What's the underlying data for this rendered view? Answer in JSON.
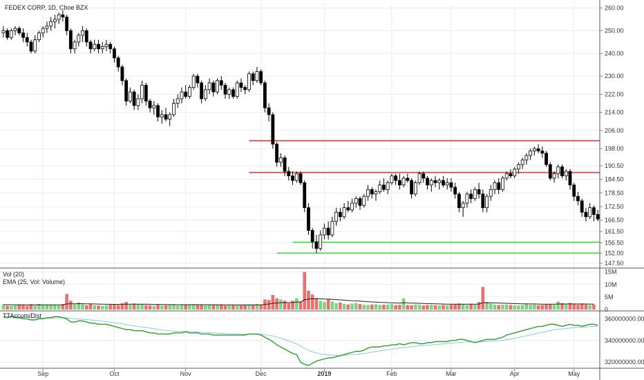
{
  "chart_data": {
    "type": "candlestick",
    "title": "FEDEX CORP, 1D, Cboe BZX",
    "colors": {
      "up": "#ffffff",
      "down": "#000000",
      "wick": "#000000",
      "resistance": "#e03a3a",
      "support": "#3ee03e",
      "vol_up": "#7fd37f",
      "vol_down": "#ec6f6f",
      "ema": "#222222",
      "accum": "#2e9a2e",
      "accum_ma": "#8fc6e8",
      "grid": "#ececec"
    },
    "price_axis": {
      "ticks": [
        "260.00",
        "250.00",
        "240.00",
        "230.00",
        "222.00",
        "214.00",
        "206.00",
        "198.00",
        "190.50",
        "184.50",
        "178.50",
        "172.50",
        "166.50",
        "161.50",
        "156.50",
        "152.00",
        "147.50"
      ],
      "range": [
        146,
        262
      ]
    },
    "x_axis": {
      "labels": [
        "Sep",
        "Oct",
        "Nov",
        "Dec",
        "2019",
        "Feb",
        "Mar",
        "Apr",
        "May"
      ]
    },
    "horizontal_lines": [
      {
        "level": 201.5,
        "color": "resistance",
        "from_session": 74
      },
      {
        "level": 187.5,
        "color": "resistance",
        "from_session": 74
      },
      {
        "level": 156.8,
        "color": "support",
        "from_session": 87
      },
      {
        "level": 152.0,
        "color": "support",
        "from_session": 83
      }
    ],
    "candles": [
      [
        249,
        252,
        247,
        250
      ],
      [
        250,
        251,
        246,
        247
      ],
      [
        247,
        251,
        246,
        250
      ],
      [
        250,
        252,
        248,
        251
      ],
      [
        251,
        252,
        248,
        249
      ],
      [
        249,
        251,
        245,
        247
      ],
      [
        247,
        249,
        243,
        245
      ],
      [
        245,
        246,
        240,
        241
      ],
      [
        241,
        248,
        240,
        246
      ],
      [
        246,
        250,
        245,
        249
      ],
      [
        249,
        252,
        247,
        251
      ],
      [
        251,
        254,
        249,
        252
      ],
      [
        252,
        256,
        250,
        254
      ],
      [
        254,
        257,
        251,
        255
      ],
      [
        255,
        258,
        253,
        257
      ],
      [
        257,
        259,
        254,
        256
      ],
      [
        256,
        257,
        248,
        250
      ],
      [
        250,
        251,
        240,
        242
      ],
      [
        242,
        246,
        240,
        245
      ],
      [
        245,
        249,
        243,
        248
      ],
      [
        248,
        252,
        245,
        250
      ],
      [
        250,
        251,
        243,
        245
      ],
      [
        245,
        246,
        240,
        242
      ],
      [
        242,
        246,
        241,
        244
      ],
      [
        244,
        246,
        240,
        242
      ],
      [
        242,
        245,
        240,
        243
      ],
      [
        243,
        246,
        241,
        244
      ],
      [
        244,
        245,
        240,
        242
      ],
      [
        242,
        243,
        236,
        238
      ],
      [
        238,
        239,
        232,
        234
      ],
      [
        234,
        235,
        226,
        228
      ],
      [
        228,
        229,
        217,
        219
      ],
      [
        219,
        225,
        218,
        223
      ],
      [
        223,
        224,
        215,
        217
      ],
      [
        217,
        222,
        215,
        220
      ],
      [
        220,
        228,
        218,
        226
      ],
      [
        226,
        227,
        217,
        219
      ],
      [
        219,
        220,
        214,
        216
      ],
      [
        216,
        219,
        213,
        217
      ],
      [
        217,
        218,
        210,
        212
      ],
      [
        212,
        215,
        209,
        213
      ],
      [
        213,
        216,
        210,
        211
      ],
      [
        211,
        214,
        208,
        213
      ],
      [
        213,
        220,
        212,
        218
      ],
      [
        218,
        222,
        216,
        220
      ],
      [
        220,
        225,
        218,
        223
      ],
      [
        223,
        226,
        220,
        221
      ],
      [
        221,
        226,
        220,
        225
      ],
      [
        225,
        231,
        224,
        230
      ],
      [
        230,
        231,
        225,
        227
      ],
      [
        227,
        228,
        218,
        220
      ],
      [
        220,
        226,
        219,
        224
      ],
      [
        224,
        229,
        222,
        227
      ],
      [
        227,
        228,
        221,
        223
      ],
      [
        223,
        229,
        222,
        228
      ],
      [
        228,
        230,
        224,
        226
      ],
      [
        226,
        227,
        220,
        222
      ],
      [
        222,
        225,
        220,
        224
      ],
      [
        224,
        225,
        220,
        221
      ],
      [
        221,
        228,
        220,
        227
      ],
      [
        227,
        229,
        223,
        225
      ],
      [
        225,
        226,
        222,
        224
      ],
      [
        224,
        232,
        223,
        231
      ],
      [
        231,
        232,
        226,
        228
      ],
      [
        228,
        234,
        227,
        232
      ],
      [
        232,
        233,
        226,
        227
      ],
      [
        227,
        228,
        214,
        216
      ],
      [
        216,
        218,
        210,
        213
      ],
      [
        213,
        214,
        198,
        200
      ],
      [
        200,
        201,
        190,
        192
      ],
      [
        192,
        196,
        190,
        194
      ],
      [
        194,
        195,
        186,
        188
      ],
      [
        188,
        190,
        184,
        186
      ],
      [
        186,
        188,
        182,
        184
      ],
      [
        184,
        188,
        183,
        187
      ],
      [
        187,
        188,
        182,
        183
      ],
      [
        183,
        184,
        170,
        172
      ],
      [
        172,
        174,
        160,
        162
      ],
      [
        162,
        163,
        154,
        157
      ],
      [
        157,
        160,
        152,
        154
      ],
      [
        154,
        162,
        153,
        160
      ],
      [
        160,
        165,
        158,
        163
      ],
      [
        163,
        166,
        158,
        160
      ],
      [
        160,
        168,
        159,
        166
      ],
      [
        166,
        172,
        164,
        170
      ],
      [
        170,
        172,
        166,
        168
      ],
      [
        168,
        174,
        167,
        172
      ],
      [
        172,
        175,
        170,
        171
      ],
      [
        171,
        176,
        170,
        174
      ],
      [
        174,
        177,
        172,
        176
      ],
      [
        176,
        177,
        171,
        173
      ],
      [
        173,
        178,
        172,
        177
      ],
      [
        177,
        182,
        175,
        180
      ],
      [
        180,
        181,
        176,
        178
      ],
      [
        178,
        180,
        175,
        179
      ],
      [
        179,
        184,
        178,
        182
      ],
      [
        182,
        185,
        179,
        180
      ],
      [
        180,
        184,
        178,
        183
      ],
      [
        183,
        187,
        182,
        186
      ],
      [
        186,
        187,
        182,
        184
      ],
      [
        184,
        187,
        180,
        182
      ],
      [
        182,
        186,
        181,
        185
      ],
      [
        185,
        187,
        183,
        184
      ],
      [
        184,
        185,
        176,
        178
      ],
      [
        178,
        184,
        177,
        183
      ],
      [
        183,
        188,
        182,
        187
      ],
      [
        187,
        188,
        183,
        185
      ],
      [
        185,
        186,
        180,
        182
      ],
      [
        182,
        185,
        179,
        184
      ],
      [
        184,
        186,
        181,
        183
      ],
      [
        183,
        185,
        180,
        184
      ],
      [
        184,
        186,
        181,
        182
      ],
      [
        182,
        185,
        180,
        183
      ],
      [
        183,
        185,
        179,
        181
      ],
      [
        181,
        183,
        176,
        178
      ],
      [
        178,
        179,
        170,
        172
      ],
      [
        172,
        175,
        168,
        174
      ],
      [
        174,
        179,
        172,
        178
      ],
      [
        178,
        180,
        174,
        176
      ],
      [
        176,
        181,
        175,
        180
      ],
      [
        180,
        183,
        176,
        178
      ],
      [
        178,
        180,
        170,
        172
      ],
      [
        172,
        178,
        170,
        177
      ],
      [
        177,
        182,
        175,
        180
      ],
      [
        180,
        184,
        178,
        183
      ],
      [
        183,
        185,
        178,
        180
      ],
      [
        180,
        186,
        179,
        185
      ],
      [
        185,
        188,
        184,
        187
      ],
      [
        187,
        189,
        185,
        186
      ],
      [
        186,
        190,
        185,
        189
      ],
      [
        189,
        192,
        187,
        191
      ],
      [
        191,
        194,
        189,
        193
      ],
      [
        193,
        196,
        191,
        195
      ],
      [
        195,
        198,
        193,
        197
      ],
      [
        197,
        199,
        195,
        198
      ],
      [
        198,
        200,
        196,
        197
      ],
      [
        197,
        199,
        194,
        196
      ],
      [
        196,
        197,
        190,
        191
      ],
      [
        191,
        192,
        184,
        185
      ],
      [
        185,
        188,
        183,
        187
      ],
      [
        187,
        191,
        185,
        190
      ],
      [
        190,
        191,
        185,
        186
      ],
      [
        186,
        189,
        184,
        188
      ],
      [
        188,
        189,
        180,
        182
      ],
      [
        182,
        183,
        175,
        177
      ],
      [
        177,
        179,
        173,
        175
      ],
      [
        175,
        176,
        168,
        170
      ],
      [
        170,
        172,
        166,
        168
      ],
      [
        168,
        174,
        167,
        172
      ],
      [
        172,
        173,
        166,
        169
      ],
      [
        169,
        171,
        166,
        167
      ]
    ],
    "vol_axis": {
      "ticks": [
        "15M",
        "10M",
        "5M",
        "0"
      ],
      "range": [
        0,
        16
      ]
    },
    "volume_title": "Vol (20)",
    "ema_title": "EMA (25, Vol: Volume)",
    "volume": [
      2.0,
      1.6,
      1.5,
      1.7,
      1.8,
      1.9,
      1.5,
      2.1,
      1.6,
      2.2,
      1.7,
      2.0,
      1.8,
      1.9,
      1.7,
      2.2,
      6.2,
      3.5,
      2.0,
      2.8,
      2.1,
      1.7,
      2.3,
      1.8,
      1.6,
      1.5,
      1.7,
      1.9,
      2.0,
      1.8,
      2.5,
      3.0,
      1.9,
      2.4,
      2.0,
      2.2,
      1.8,
      1.7,
      1.5,
      1.9,
      1.6,
      1.7,
      1.8,
      2.0,
      1.6,
      1.8,
      2.0,
      1.9,
      2.1,
      1.8,
      2.0,
      1.7,
      1.9,
      1.8,
      1.8,
      2.0,
      1.6,
      1.9,
      1.8,
      1.7,
      1.7,
      1.8,
      2.0,
      1.9,
      2.2,
      2.0,
      4.0,
      3.8,
      5.8,
      4.5,
      4.0,
      3.5,
      2.5,
      3.5,
      4.5,
      3.2,
      15.0,
      7.5,
      6.0,
      4.5,
      3.5,
      3.0,
      4.0,
      3.2,
      2.5,
      2.8,
      2.2,
      2.0,
      2.4,
      2.6,
      2.2,
      1.9,
      1.8,
      2.0,
      2.1,
      1.8,
      1.9,
      2.0,
      2.2,
      1.8,
      1.9,
      4.5,
      1.8,
      1.7,
      2.0,
      1.9,
      1.6,
      1.8,
      1.9,
      1.7,
      1.6,
      1.8,
      1.7,
      1.9,
      2.0,
      2.4,
      2.1,
      1.8,
      2.3,
      1.9,
      3.0,
      9.0,
      3.0,
      2.4,
      2.0,
      1.8,
      1.9,
      2.0,
      1.8,
      1.7,
      1.6,
      1.8,
      2.2,
      1.9,
      2.0,
      1.7,
      1.8,
      2.0,
      2.2,
      1.9,
      3.2,
      2.5,
      2.0,
      2.6,
      2.2,
      1.9,
      2.4,
      2.0,
      1.8,
      2.0
    ],
    "accum_axis": {
      "ticks": [
        "360000000.00",
        "340000000.00",
        "320000000.00"
      ],
      "range": [
        315,
        366
      ]
    },
    "accum_title": "TTAccum/Dist",
    "accum": [
      362,
      361,
      362,
      361,
      361,
      360,
      360,
      359,
      359,
      360,
      360,
      361,
      361,
      362,
      362,
      361,
      360,
      357,
      357,
      358,
      358,
      357,
      356,
      356,
      355,
      355,
      355,
      354,
      353,
      352,
      351,
      350,
      350,
      349,
      349,
      349,
      348,
      347,
      347,
      346,
      346,
      346,
      346,
      347,
      347,
      347,
      348,
      347,
      347,
      347,
      346,
      346,
      346,
      345,
      345,
      345,
      345,
      345,
      345,
      345,
      345,
      345,
      346,
      346,
      346,
      345,
      343,
      341,
      339,
      336,
      334,
      332,
      330,
      328,
      327,
      320,
      318,
      317,
      319,
      321,
      322,
      323,
      324,
      324,
      325,
      326,
      327,
      328,
      329,
      330,
      330,
      331,
      333,
      334,
      334,
      334,
      335,
      335,
      336,
      336,
      337,
      336,
      337,
      338,
      338,
      337,
      337,
      338,
      338,
      339,
      339,
      339,
      339,
      340,
      340,
      341,
      341,
      340,
      339,
      338,
      339,
      340,
      341,
      341,
      341,
      342,
      343,
      345,
      346,
      347,
      348,
      349,
      350,
      351,
      352,
      353,
      353,
      354,
      355,
      355,
      354,
      353,
      354,
      355,
      354,
      354,
      353,
      354,
      355,
      355,
      354,
      353
    ]
  }
}
